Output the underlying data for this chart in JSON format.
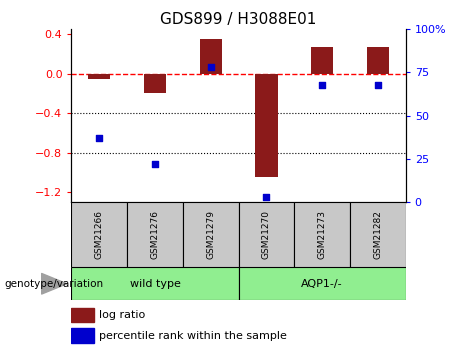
{
  "title": "GDS899 / H3088E01",
  "samples": [
    "GSM21266",
    "GSM21276",
    "GSM21279",
    "GSM21270",
    "GSM21273",
    "GSM21282"
  ],
  "log_ratio": [
    -0.05,
    -0.2,
    0.35,
    -1.05,
    0.27,
    0.27
  ],
  "percentile_rank": [
    37,
    22,
    78,
    3,
    68,
    68
  ],
  "bar_color": "#8B1A1A",
  "dot_color": "#0000CD",
  "left_ylim": [
    -1.3,
    0.45
  ],
  "right_ylim": [
    0,
    100
  ],
  "left_yticks": [
    -1.2,
    -0.8,
    -0.4,
    0.0,
    0.4
  ],
  "right_yticks": [
    0,
    25,
    50,
    75,
    100
  ],
  "right_yticklabels": [
    "0",
    "25",
    "50",
    "75",
    "100%"
  ],
  "hline_y": 0.0,
  "dotted_lines": [
    -0.4,
    -0.8
  ],
  "genotype_label": "genotype/variation",
  "group_wt_label": "wild type",
  "group_aqp_label": "AQP1-/-",
  "legend_items": [
    {
      "label": "log ratio",
      "color": "#8B1A1A"
    },
    {
      "label": "percentile rank within the sample",
      "color": "#0000CD"
    }
  ],
  "sample_box_color": "#C8C8C8",
  "group_box_color": "#90EE90",
  "figsize": [
    4.61,
    3.45
  ],
  "dpi": 100
}
